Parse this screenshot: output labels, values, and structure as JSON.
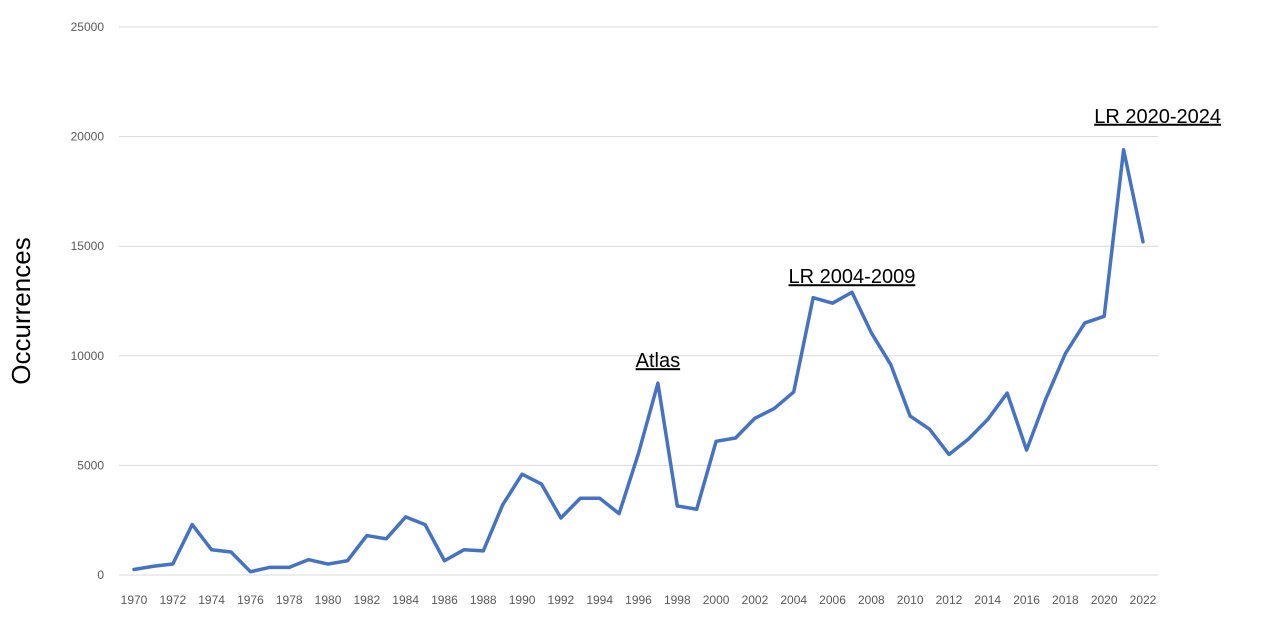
{
  "chart_data": {
    "type": "line",
    "title": "",
    "xlabel": "",
    "ylabel": "Occurrences",
    "ylim": [
      0,
      25000
    ],
    "y_ticks": [
      0,
      5000,
      10000,
      15000,
      20000,
      25000
    ],
    "x_tick_labels": [
      1970,
      1972,
      1974,
      1976,
      1978,
      1980,
      1982,
      1984,
      1986,
      1988,
      1990,
      1992,
      1994,
      1996,
      1998,
      2000,
      2002,
      2004,
      2006,
      2008,
      2010,
      2012,
      2014,
      2016,
      2018,
      2020,
      2022
    ],
    "grid": true,
    "line_color": "#4472C4",
    "x": [
      1970,
      1971,
      1972,
      1973,
      1974,
      1975,
      1976,
      1977,
      1978,
      1979,
      1980,
      1981,
      1982,
      1983,
      1984,
      1985,
      1986,
      1987,
      1988,
      1989,
      1990,
      1991,
      1992,
      1993,
      1994,
      1995,
      1996,
      1997,
      1998,
      1999,
      2000,
      2001,
      2002,
      2003,
      2004,
      2005,
      2006,
      2007,
      2008,
      2009,
      2010,
      2011,
      2012,
      2013,
      2014,
      2015,
      2016,
      2017,
      2018,
      2019,
      2020,
      2021,
      2022
    ],
    "series": [
      {
        "values": [
          250,
          400,
          500,
          2300,
          1150,
          1050,
          150,
          350,
          350,
          700,
          500,
          650,
          1800,
          1650,
          2650,
          2300,
          650,
          1150,
          1100,
          3200,
          4600,
          4150,
          2600,
          3500,
          3500,
          2800,
          5550,
          8750,
          3150,
          3000,
          6100,
          6250,
          7150,
          7600,
          8350,
          12650,
          12400,
          12900,
          11050,
          9600,
          7250,
          6650,
          5500,
          6200,
          7100,
          8300,
          5700,
          8050,
          10100,
          11500,
          11800,
          19400,
          15200
        ]
      }
    ],
    "annotations": [
      {
        "text": "Atlas",
        "x": 1997,
        "y": 8750
      },
      {
        "text": "LR 2004-2009",
        "x": 2007,
        "y": 12900
      },
      {
        "text": "LR 2020-2024",
        "x": 2021,
        "y": 19400
      }
    ]
  }
}
